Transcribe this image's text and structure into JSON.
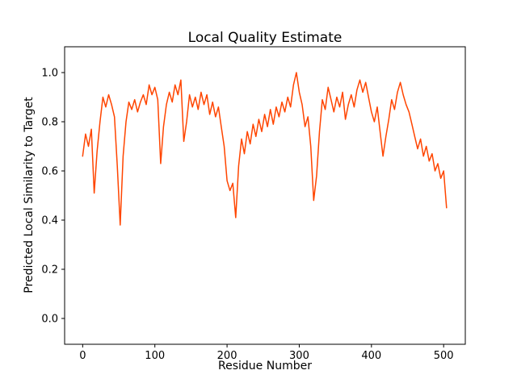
{
  "chart_data": {
    "type": "line",
    "title": "Local Quality Estimate",
    "xlabel": "Residue Number",
    "ylabel": "Predicted Local Similarity to Target",
    "line_color": "#FF4500",
    "line_width": 1.5,
    "background": "#FFFFFF",
    "grid": false,
    "legend": "none",
    "xlim": [
      -25,
      530
    ],
    "ylim": [
      -0.105,
      1.105
    ],
    "xticks": [
      0,
      100,
      200,
      300,
      400,
      500
    ],
    "yticks": [
      "0.0",
      "0.2",
      "0.4",
      "0.6",
      "0.8",
      "1.0"
    ],
    "series": [
      {
        "name": "predicted-local-similarity",
        "x": [
          0,
          4,
          8,
          12,
          16,
          20,
          24,
          28,
          32,
          36,
          40,
          44,
          48,
          52,
          56,
          60,
          64,
          68,
          72,
          76,
          80,
          84,
          88,
          92,
          96,
          100,
          104,
          108,
          112,
          116,
          120,
          124,
          128,
          132,
          136,
          140,
          144,
          148,
          152,
          156,
          160,
          164,
          168,
          172,
          176,
          180,
          184,
          188,
          192,
          196,
          200,
          204,
          208,
          212,
          216,
          220,
          224,
          228,
          232,
          236,
          240,
          244,
          248,
          252,
          256,
          260,
          264,
          268,
          272,
          276,
          280,
          284,
          288,
          292,
          296,
          300,
          304,
          308,
          312,
          316,
          320,
          324,
          328,
          332,
          336,
          340,
          344,
          348,
          352,
          356,
          360,
          364,
          368,
          372,
          376,
          380,
          384,
          388,
          392,
          396,
          400,
          404,
          408,
          412,
          416,
          420,
          424,
          428,
          432,
          436,
          440,
          444,
          448,
          452,
          456,
          460,
          464,
          468,
          472,
          476,
          480,
          484,
          488,
          492,
          496,
          500,
          504
        ],
        "y": [
          0.66,
          0.75,
          0.7,
          0.77,
          0.51,
          0.68,
          0.8,
          0.9,
          0.86,
          0.91,
          0.87,
          0.82,
          0.62,
          0.38,
          0.66,
          0.8,
          0.88,
          0.85,
          0.89,
          0.84,
          0.88,
          0.91,
          0.87,
          0.95,
          0.91,
          0.94,
          0.89,
          0.63,
          0.78,
          0.87,
          0.92,
          0.88,
          0.95,
          0.91,
          0.97,
          0.72,
          0.8,
          0.91,
          0.86,
          0.9,
          0.85,
          0.92,
          0.87,
          0.91,
          0.83,
          0.88,
          0.82,
          0.86,
          0.78,
          0.7,
          0.56,
          0.52,
          0.55,
          0.41,
          0.62,
          0.73,
          0.67,
          0.76,
          0.71,
          0.79,
          0.74,
          0.81,
          0.76,
          0.83,
          0.78,
          0.85,
          0.79,
          0.86,
          0.82,
          0.88,
          0.84,
          0.9,
          0.86,
          0.95,
          1.0,
          0.92,
          0.87,
          0.78,
          0.82,
          0.7,
          0.48,
          0.58,
          0.76,
          0.89,
          0.85,
          0.94,
          0.89,
          0.84,
          0.9,
          0.86,
          0.92,
          0.81,
          0.87,
          0.91,
          0.86,
          0.93,
          0.97,
          0.92,
          0.96,
          0.9,
          0.84,
          0.8,
          0.86,
          0.76,
          0.66,
          0.74,
          0.81,
          0.89,
          0.85,
          0.92,
          0.96,
          0.91,
          0.87,
          0.84,
          0.79,
          0.74,
          0.69,
          0.73,
          0.66,
          0.7,
          0.64,
          0.67,
          0.6,
          0.63,
          0.57,
          0.6,
          0.45
        ]
      }
    ]
  }
}
